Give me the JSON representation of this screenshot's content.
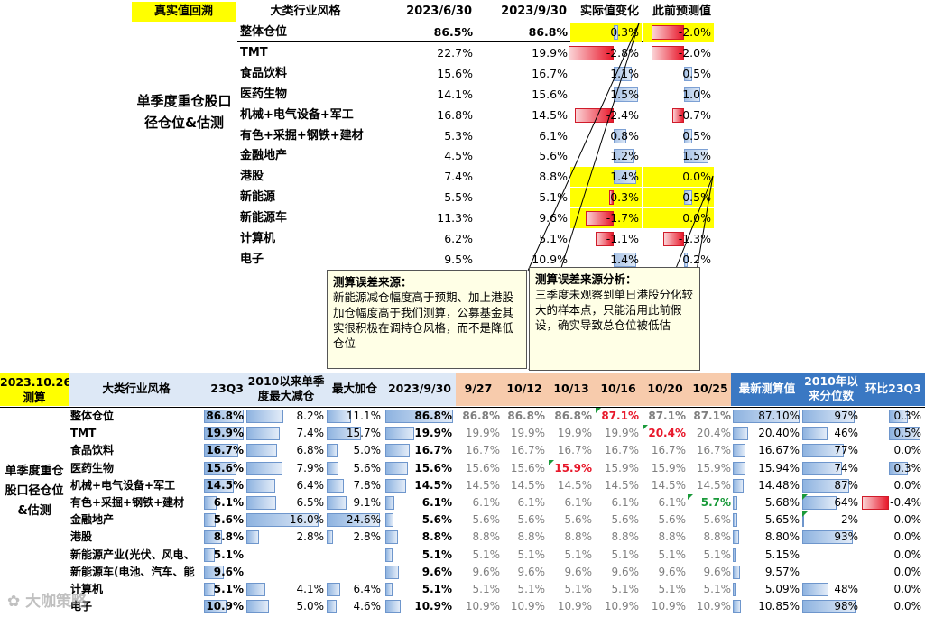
{
  "top": {
    "tag": "真实值回溯",
    "side_label": "单季度重仓股口径仓位&估测",
    "headers": [
      "大类行业风格",
      "2023/6/30",
      "2023/9/30",
      "实际值变化",
      "此前预测值"
    ],
    "rows": [
      {
        "name": "整体仓位",
        "a": "86.5%",
        "b": "86.8%",
        "chg": "0.3%",
        "chg_v": 0.3,
        "pred": "-2.0%",
        "pred_v": -2.0
      },
      {
        "name": "TMT",
        "a": "22.7%",
        "b": "19.9%",
        "chg": "-2.8%",
        "chg_v": -2.8,
        "pred": "-2.0%",
        "pred_v": -2.0
      },
      {
        "name": "食品饮料",
        "a": "15.6%",
        "b": "16.7%",
        "chg": "1.1%",
        "chg_v": 1.1,
        "pred": "0.5%",
        "pred_v": 0.5
      },
      {
        "name": "医药生物",
        "a": "14.1%",
        "b": "15.6%",
        "chg": "1.5%",
        "chg_v": 1.5,
        "pred": "1.0%",
        "pred_v": 1.0
      },
      {
        "name": "机械+电气设备+军工",
        "a": "16.8%",
        "b": "14.5%",
        "chg": "-2.4%",
        "chg_v": -2.4,
        "pred": "-0.7%",
        "pred_v": -0.7
      },
      {
        "name": "有色+采掘+钢铁+建材",
        "a": "5.3%",
        "b": "6.1%",
        "chg": "0.8%",
        "chg_v": 0.8,
        "pred": "0.5%",
        "pred_v": 0.5
      },
      {
        "name": "金融地产",
        "a": "4.5%",
        "b": "5.6%",
        "chg": "1.2%",
        "chg_v": 1.2,
        "pred": "1.5%",
        "pred_v": 1.5
      },
      {
        "name": "港股",
        "a": "7.4%",
        "b": "8.8%",
        "chg": "1.4%",
        "chg_v": 1.4,
        "pred": "0.0%",
        "pred_v": 0.0
      },
      {
        "name": "新能源",
        "a": "5.5%",
        "b": "5.1%",
        "chg": "-0.3%",
        "chg_v": -0.3,
        "pred": "0.5%",
        "pred_v": 0.5
      },
      {
        "name": "新能源车",
        "a": "11.3%",
        "b": "9.6%",
        "chg": "-1.7%",
        "chg_v": -1.7,
        "pred": "0.0%",
        "pred_v": 0.0
      },
      {
        "name": "计算机",
        "a": "6.2%",
        "b": "5.1%",
        "chg": "-1.1%",
        "chg_v": -1.1,
        "pred": "-1.3%",
        "pred_v": -1.3
      },
      {
        "name": "电子",
        "a": "9.5%",
        "b": "10.9%",
        "chg": "1.4%",
        "chg_v": 1.4,
        "pred": "0.2%",
        "pred_v": 0.2
      }
    ],
    "note1_title": "测算误差来源：",
    "note1_body": "新能源减仓幅度高于预期、加上港股加仓幅度高于我们测算，公募基金其实很积极在调持仓风格，而不是降低仓位",
    "note2_title": "测算误差来源分析：",
    "note2_body": "三季度未观察到单日港股分化较大的样本点，只能沿用此前假设，确实导致总仓位被低估"
  },
  "bottom": {
    "tag": "2023.10.26测算",
    "side_label": "单季度重仓股口径仓位&估测",
    "headers": [
      "大类行业风格",
      "23Q3",
      "2010以来单季度最大减仓",
      "最大加仓",
      "2023/9/30",
      "9/27",
      "10/12",
      "10/13",
      "10/16",
      "10/20",
      "10/25",
      "最新测算值",
      "2010年以来分位数",
      "环比23Q3"
    ],
    "rows": [
      {
        "name": "整体仓位",
        "q3": "86.8%",
        "dec": "8.2%",
        "inc": "11.1%",
        "s930": "86.8%",
        "d": [
          "86.8%",
          "86.8%",
          "86.8%",
          "87.1%",
          "87.1%",
          "87.1%"
        ],
        "latest": "87.10%",
        "pct": "97%",
        "mom": "0.3%"
      },
      {
        "name": "TMT",
        "q3": "19.9%",
        "dec": "7.4%",
        "inc": "15.7%",
        "s930": "19.9%",
        "d": [
          "19.9%",
          "19.9%",
          "19.9%",
          "19.9%",
          "20.4%",
          "20.4%"
        ],
        "latest": "20.40%",
        "pct": "46%",
        "mom": "0.5%"
      },
      {
        "name": "食品饮料",
        "q3": "16.7%",
        "dec": "6.8%",
        "inc": "5.0%",
        "s930": "16.7%",
        "d": [
          "16.7%",
          "16.7%",
          "16.7%",
          "16.7%",
          "16.7%",
          "16.7%"
        ],
        "latest": "16.67%",
        "pct": "77%",
        "mom": "0.0%"
      },
      {
        "name": "医药生物",
        "q3": "15.6%",
        "dec": "7.9%",
        "inc": "5.6%",
        "s930": "15.6%",
        "d": [
          "15.6%",
          "15.6%",
          "15.9%",
          "15.9%",
          "15.9%",
          "15.9%"
        ],
        "latest": "15.94%",
        "pct": "74%",
        "mom": "0.3%"
      },
      {
        "name": "机械+电气设备+军工",
        "q3": "14.5%",
        "dec": "6.4%",
        "inc": "7.8%",
        "s930": "14.5%",
        "d": [
          "14.5%",
          "14.5%",
          "14.5%",
          "14.5%",
          "14.5%",
          "14.5%"
        ],
        "latest": "14.48%",
        "pct": "87%",
        "mom": "0.0%"
      },
      {
        "name": "有色+采掘+钢铁+建材",
        "q3": "6.1%",
        "dec": "6.5%",
        "inc": "9.1%",
        "s930": "6.1%",
        "d": [
          "6.1%",
          "6.1%",
          "6.1%",
          "6.1%",
          "6.1%",
          "5.7%"
        ],
        "latest": "5.68%",
        "pct": "64%",
        "mom": "-0.4%"
      },
      {
        "name": "金融地产",
        "q3": "5.6%",
        "dec": "16.0%",
        "inc": "24.6%",
        "s930": "5.6%",
        "d": [
          "5.6%",
          "5.6%",
          "5.6%",
          "5.6%",
          "5.6%",
          "5.6%"
        ],
        "latest": "5.65%",
        "pct": "2%",
        "mom": "0.0%"
      },
      {
        "name": "港股",
        "q3": "8.8%",
        "dec": "2.8%",
        "inc": "2.8%",
        "s930": "8.8%",
        "d": [
          "8.8%",
          "8.8%",
          "8.8%",
          "8.8%",
          "8.8%",
          "8.8%"
        ],
        "latest": "8.80%",
        "pct": "93%",
        "mom": "0.0%"
      },
      {
        "name": "新能源产业(光伏、风电、",
        "q3": "5.1%",
        "dec": "",
        "inc": "",
        "s930": "5.1%",
        "d": [
          "5.1%",
          "5.1%",
          "5.1%",
          "5.1%",
          "5.1%",
          "5.1%"
        ],
        "latest": "5.15%",
        "pct": "",
        "mom": "0.0%"
      },
      {
        "name": "新能源车(电池、汽车、能",
        "q3": "9.6%",
        "dec": "",
        "inc": "",
        "s930": "9.6%",
        "d": [
          "9.6%",
          "9.6%",
          "9.6%",
          "9.6%",
          "9.6%",
          "9.6%"
        ],
        "latest": "9.57%",
        "pct": "",
        "mom": "0.0%"
      },
      {
        "name": "计算机",
        "q3": "5.1%",
        "dec": "4.1%",
        "inc": "6.4%",
        "s930": "5.1%",
        "d": [
          "5.1%",
          "5.1%",
          "5.1%",
          "5.1%",
          "5.1%",
          "5.1%"
        ],
        "latest": "5.09%",
        "pct": "48%",
        "mom": "0.0%"
      },
      {
        "name": "电子",
        "q3": "10.9%",
        "dec": "5.0%",
        "inc": "4.6%",
        "s930": "10.9%",
        "d": [
          "10.9%",
          "10.9%",
          "10.9%",
          "10.9%",
          "10.9%",
          "10.9%"
        ],
        "latest": "10.85%",
        "pct": "98%",
        "mom": "0.0%"
      }
    ]
  },
  "watermark": "大咖策略",
  "colors": {
    "yellow": "#ffff00",
    "blue": "#3a78c3",
    "peach": "#f7cbac",
    "red": "#e8182b",
    "green": "#1a9a3a"
  }
}
